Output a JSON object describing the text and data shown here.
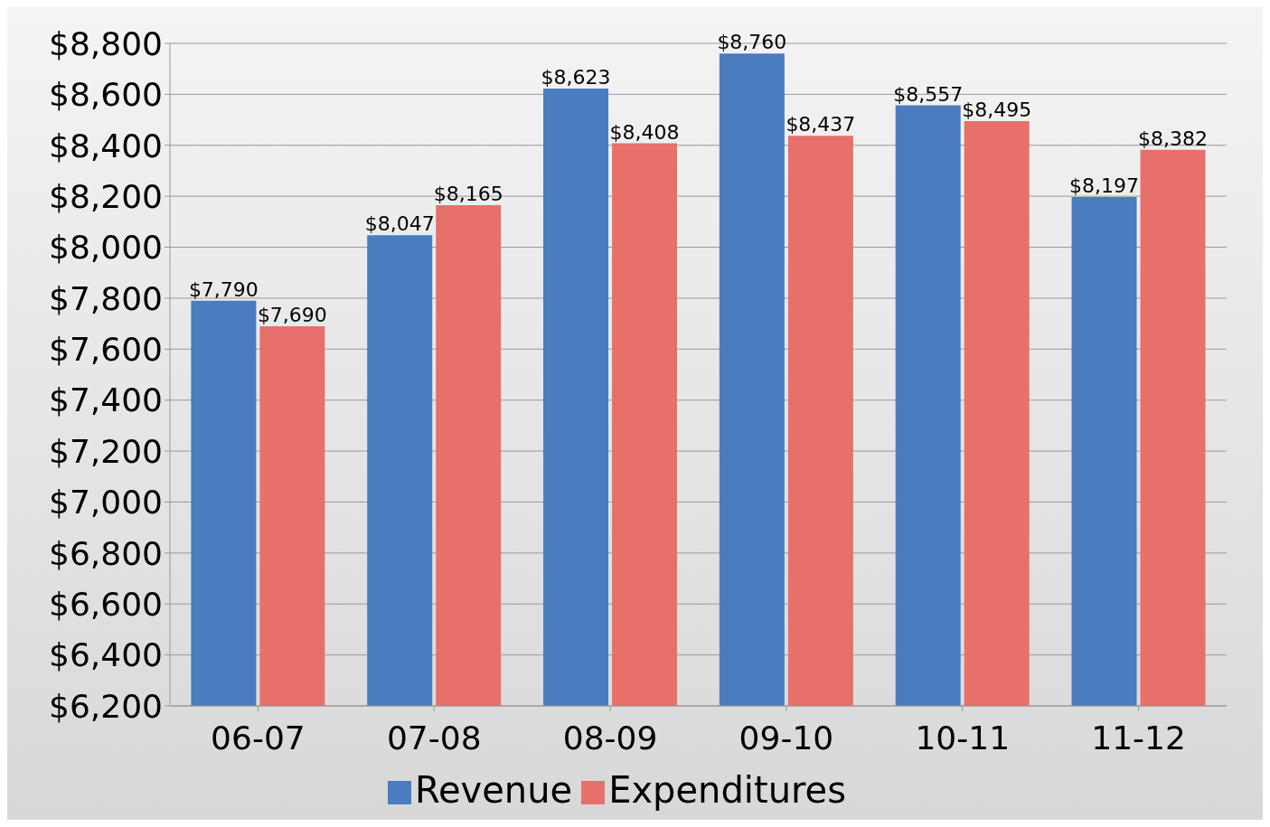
{
  "chart_data": {
    "type": "bar",
    "categories": [
      "06-07",
      "07-08",
      "08-09",
      "09-10",
      "10-11",
      "11-12"
    ],
    "series": [
      {
        "name": "Revenue",
        "color": "#4a7cc0",
        "values": [
          7790,
          8047,
          8623,
          8760,
          8557,
          8197
        ],
        "value_labels": [
          "$7,790",
          "$8,047",
          "$8,623",
          "$8,760",
          "$8,557",
          "$8,197"
        ]
      },
      {
        "name": "Expenditures",
        "color": "#e8706a",
        "values": [
          7690,
          8165,
          8408,
          8437,
          8495,
          8382
        ],
        "value_labels": [
          "$7,690",
          "$8,165",
          "$8,408",
          "$8,437",
          "$8,495",
          "$8,382"
        ]
      }
    ],
    "ylim": [
      6200,
      8800
    ],
    "yticks": [
      {
        "value": 6200,
        "label": "$6,200"
      },
      {
        "value": 6400,
        "label": "$6,400"
      },
      {
        "value": 6600,
        "label": "$6,600"
      },
      {
        "value": 6800,
        "label": "$6,800"
      },
      {
        "value": 7000,
        "label": "$7,000"
      },
      {
        "value": 7200,
        "label": "$7,200"
      },
      {
        "value": 7400,
        "label": "$7,400"
      },
      {
        "value": 7600,
        "label": "$7,600"
      },
      {
        "value": 7800,
        "label": "$7,800"
      },
      {
        "value": 8000,
        "label": "$8,000"
      },
      {
        "value": 8200,
        "label": "$8,200"
      },
      {
        "value": 8400,
        "label": "$8,400"
      },
      {
        "value": 8600,
        "label": "$8,600"
      },
      {
        "value": 8800,
        "label": "$8,800"
      }
    ],
    "grid": "y",
    "legend": "bottom"
  }
}
